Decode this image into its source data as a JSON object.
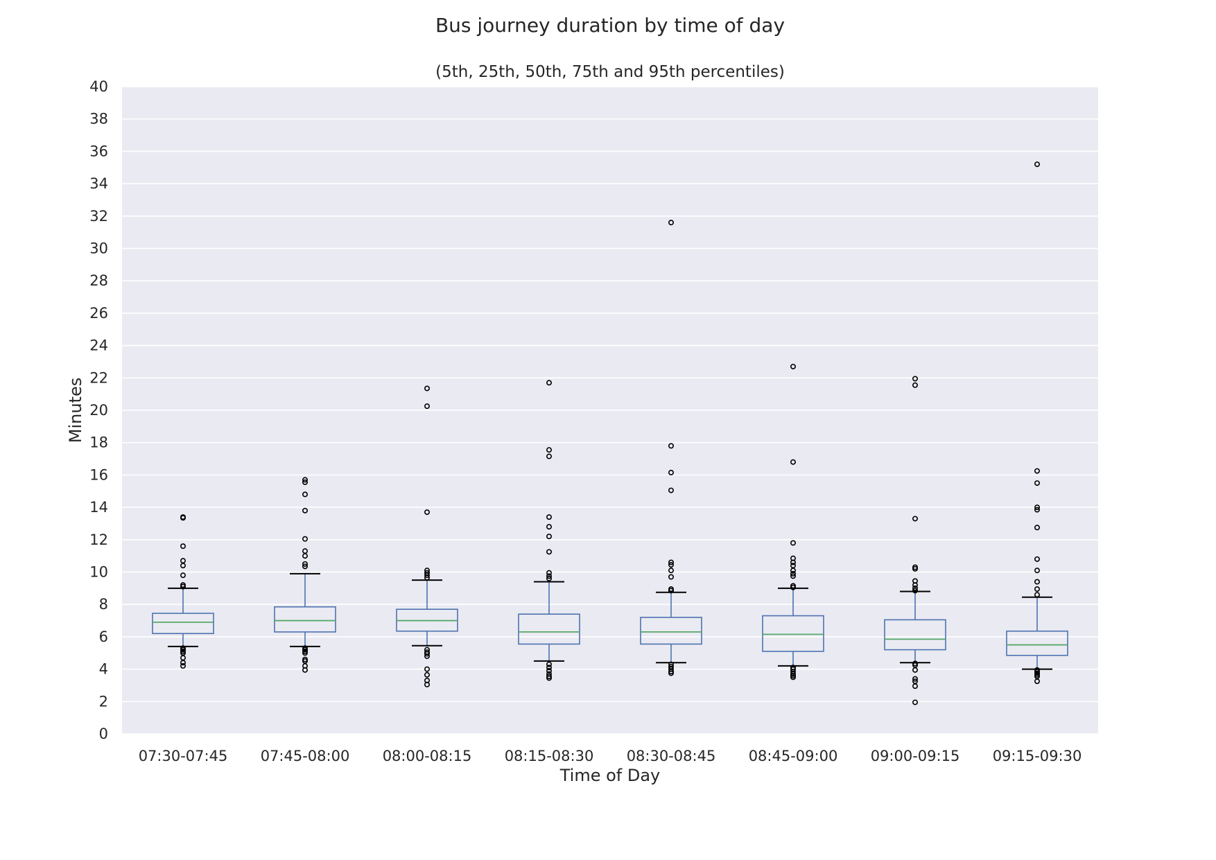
{
  "chart_data": {
    "type": "box",
    "title": "Bus journey duration by time of day",
    "subtitle": "(5th, 25th, 50th, 75th and 95th percentiles)",
    "xlabel": "Time of Day",
    "ylabel": "Minutes",
    "ylim": [
      0,
      40
    ],
    "yticks": [
      0,
      2,
      4,
      6,
      8,
      10,
      12,
      14,
      16,
      18,
      20,
      22,
      24,
      26,
      28,
      30,
      32,
      34,
      36,
      38,
      40
    ],
    "grid": true,
    "legend": "none",
    "colors": {
      "background": "#eaeaf2",
      "grid": "#ffffff",
      "box": "#4c72b0",
      "median": "#55a868",
      "whisker_cap": "#000000",
      "outlier": "#000000"
    },
    "categories": [
      "07:30-07:45",
      "07:45-08:00",
      "08:00-08:15",
      "08:15-08:30",
      "08:30-08:45",
      "08:45-09:00",
      "09:00-09:15",
      "09:15-09:30"
    ],
    "boxes": [
      {
        "category": "07:30-07:45",
        "p5": 5.4,
        "q1": 6.2,
        "median": 6.9,
        "q3": 7.45,
        "p95": 9.0,
        "outliers": [
          13.4,
          13.35,
          11.6,
          10.7,
          10.4,
          9.8,
          9.2,
          9.1,
          5.3,
          5.2,
          5.1,
          5.0,
          4.7,
          4.4,
          4.2
        ]
      },
      {
        "category": "07:45-08:00",
        "p5": 5.4,
        "q1": 6.3,
        "median": 7.0,
        "q3": 7.85,
        "p95": 9.9,
        "outliers": [
          15.7,
          15.55,
          14.8,
          13.8,
          12.05,
          11.3,
          11.0,
          10.5,
          10.35,
          5.3,
          5.2,
          5.1,
          5.0,
          4.6,
          4.5,
          4.2,
          3.95
        ]
      },
      {
        "category": "08:00-08:15",
        "p5": 5.45,
        "q1": 6.35,
        "median": 7.0,
        "q3": 7.7,
        "p95": 9.5,
        "outliers": [
          21.35,
          20.25,
          13.7,
          10.1,
          9.95,
          9.8,
          9.65,
          5.2,
          5.05,
          4.95,
          4.8,
          4.0,
          3.65,
          3.3,
          3.05
        ]
      },
      {
        "category": "08:15-08:30",
        "p5": 4.5,
        "q1": 5.55,
        "median": 6.3,
        "q3": 7.4,
        "p95": 9.4,
        "outliers": [
          21.7,
          17.55,
          17.15,
          13.4,
          12.8,
          12.2,
          11.25,
          9.95,
          9.75,
          9.6,
          4.3,
          4.1,
          3.9,
          3.7,
          3.55,
          3.45
        ]
      },
      {
        "category": "08:30-08:45",
        "p5": 4.4,
        "q1": 5.55,
        "median": 6.3,
        "q3": 7.2,
        "p95": 8.75,
        "outliers": [
          31.6,
          17.8,
          16.15,
          15.05,
          10.6,
          10.45,
          10.1,
          9.7,
          8.95,
          8.85,
          4.3,
          4.15,
          4.0,
          3.85,
          3.75
        ]
      },
      {
        "category": "08:45-09:00",
        "p5": 4.2,
        "q1": 5.1,
        "median": 6.15,
        "q3": 7.3,
        "p95": 9.0,
        "outliers": [
          22.7,
          16.8,
          11.8,
          10.85,
          10.6,
          10.4,
          10.1,
          9.9,
          9.75,
          9.15,
          9.05,
          4.1,
          4.0,
          3.85,
          3.7,
          3.6,
          3.5
        ]
      },
      {
        "category": "09:00-09:15",
        "p5": 4.4,
        "q1": 5.2,
        "median": 5.85,
        "q3": 7.05,
        "p95": 8.8,
        "outliers": [
          21.95,
          21.55,
          13.3,
          10.3,
          10.2,
          9.45,
          9.2,
          9.0,
          8.85,
          4.35,
          4.25,
          3.95,
          3.4,
          3.25,
          2.95,
          1.95
        ]
      },
      {
        "category": "09:15-09:30",
        "p5": 4.0,
        "q1": 4.85,
        "median": 5.5,
        "q3": 6.35,
        "p95": 8.45,
        "outliers": [
          35.2,
          16.25,
          15.5,
          14.0,
          13.85,
          12.75,
          10.8,
          10.1,
          9.4,
          8.95,
          8.6,
          3.95,
          3.85,
          3.75,
          3.65,
          3.55,
          3.25
        ]
      }
    ]
  }
}
